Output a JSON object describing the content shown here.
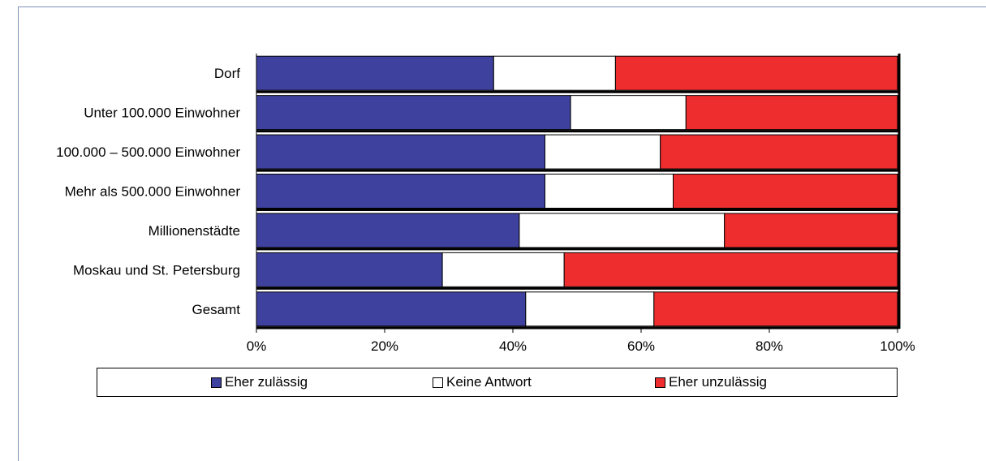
{
  "page_title": "",
  "chart_data": {
    "type": "bar",
    "orientation": "horizontal",
    "stacked": true,
    "percent": true,
    "categories": [
      "Dorf",
      "Unter 100.000 Einwohner",
      "100.000 – 500.000 Einwohner",
      "Mehr als 500.000 Einwohner",
      "Millionenstädte",
      "Moskau und St. Petersburg",
      "Gesamt"
    ],
    "series": [
      {
        "name": "Eher zulässig",
        "color": "#3f419e",
        "values": [
          37,
          49,
          45,
          45,
          41,
          29,
          42
        ]
      },
      {
        "name": "Keine Antwort",
        "color": "#ffffff",
        "values": [
          19,
          18,
          18,
          20,
          32,
          19,
          20
        ]
      },
      {
        "name": "Eher unzulässig",
        "color": "#ee2e2e",
        "values": [
          44,
          33,
          37,
          35,
          27,
          52,
          38
        ]
      }
    ],
    "xlim": [
      0,
      100
    ],
    "xticks": [
      "0%",
      "20%",
      "40%",
      "60%",
      "80%",
      "100%"
    ],
    "xlabel": "",
    "ylabel": "",
    "grid": false,
    "legend_position": "bottom"
  },
  "legend": [
    {
      "label": "Eher zulässig",
      "color": "#3f419e"
    },
    {
      "label": "Keine Antwort",
      "color": "#ffffff"
    },
    {
      "label": "Eher unzulässig",
      "color": "#ee2e2e"
    }
  ]
}
